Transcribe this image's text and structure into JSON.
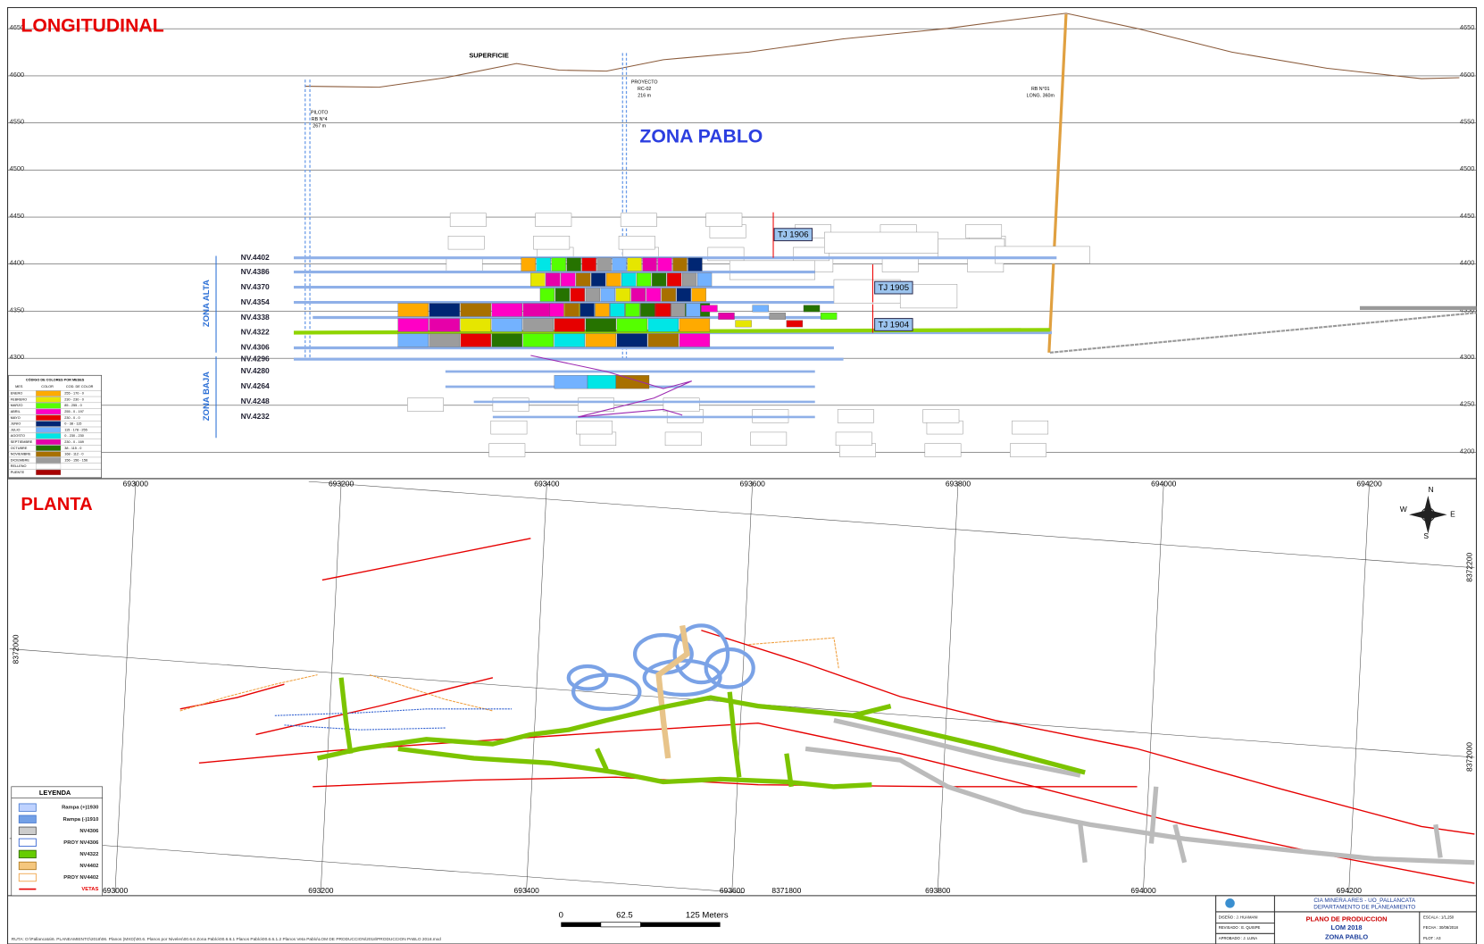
{
  "longitudinal": {
    "title": "LONGITUDINAL",
    "elevations": [
      4650,
      4600,
      4550,
      4500,
      4450,
      4400,
      4350,
      4300,
      4250,
      4200
    ],
    "surface_label": "SUPERFICIE",
    "zone_title": "ZONA PABLO",
    "raises": [
      {
        "lines": [
          "PILOTO",
          "RB N°4",
          "267 m"
        ]
      },
      {
        "lines": [
          "PROYECTO",
          "RC-02",
          "216 m"
        ]
      },
      {
        "lines": [
          "RB N°01",
          "LONG. 360m"
        ]
      }
    ],
    "tajos": [
      "TJ 1906",
      "TJ 1905",
      "TJ 1904"
    ],
    "zones": [
      "ZONA ALTA",
      "ZONA BAJA"
    ],
    "levels": [
      "NV.4402",
      "NV.4386",
      "NV.4370",
      "NV.4354",
      "NV.4338",
      "NV.4322",
      "NV.4306",
      "NV.4296",
      "NV.4280",
      "NV.4264",
      "NV.4248",
      "NV.4232"
    ]
  },
  "color_code": {
    "title": "CÓDIGO DE COLORES POR MESES",
    "headers": [
      "MES",
      "COLOR",
      "COD. DE COLOR"
    ],
    "rows": [
      {
        "month": "ENERO",
        "color": "#ffaa00",
        "code": "255 - 170 - 0"
      },
      {
        "month": "FEBRERO",
        "color": "#e6e600",
        "code": "230 - 230 - 0"
      },
      {
        "month": "MARZO",
        "color": "#55ff00",
        "code": "85 - 255 - 0"
      },
      {
        "month": "ABRIL",
        "color": "#ff00c5",
        "code": "255 - 0 - 197"
      },
      {
        "month": "MAYO",
        "color": "#e60000",
        "code": "230 - 0 - 0"
      },
      {
        "month": "JUNIO",
        "color": "#002673",
        "code": "0 - 38 - 115"
      },
      {
        "month": "JULIO",
        "color": "#73b2ff",
        "code": "115 - 178 - 255"
      },
      {
        "month": "AGOSTO",
        "color": "#00e6e6",
        "code": "0 - 230 - 230"
      },
      {
        "month": "SEPTIEMBRE",
        "color": "#e600a9",
        "code": "230 - 0 - 169"
      },
      {
        "month": "OCTUBRE",
        "color": "#267300",
        "code": "38 - 115 - 0"
      },
      {
        "month": "NOVIEMBRE",
        "color": "#a87000",
        "code": "168 - 112 - 0"
      },
      {
        "month": "DICIEMBRE",
        "color": "#9c9c9c",
        "code": "156 - 156 - 156"
      },
      {
        "month": "RELLENO",
        "color": "#ffffff",
        "code": ""
      },
      {
        "month": "PUENTE",
        "color": "#a80000",
        "code": ""
      }
    ]
  },
  "planta": {
    "title": "PLANTA",
    "eastings": [
      693000,
      693200,
      693400,
      693600,
      693800,
      694000,
      694200
    ],
    "northings": [
      8372200,
      8372000,
      8371800
    ],
    "compass": [
      "N",
      "E",
      "S",
      "W"
    ],
    "legend_title": "LEYENDA",
    "legend": [
      {
        "label": "Rampa (+)1930",
        "fill": "#bed2ff",
        "stroke": "#4a7bd0"
      },
      {
        "label": "Rampa (-)1910",
        "fill": "#73a0e6",
        "stroke": "#4a7bd0"
      },
      {
        "label": "NV4306",
        "fill": "#cccccc",
        "stroke": "#555555"
      },
      {
        "label": "PROY NV4306",
        "fill": "#ffffff",
        "stroke": "#2f5fd0"
      },
      {
        "label": "NV4322",
        "fill": "#66cc00",
        "stroke": "#336600"
      },
      {
        "label": "NV4402",
        "fill": "#f5c77e",
        "stroke": "#b07a20"
      },
      {
        "label": "PROY NV4402",
        "fill": "#ffffff",
        "stroke": "#f0a040"
      },
      {
        "label": "VETAS",
        "fill": "#ffffff",
        "stroke": "#e60000"
      }
    ]
  },
  "scale_bar": {
    "labels": [
      "0",
      "62.5",
      "125 Meters"
    ]
  },
  "title_block": {
    "company": "CIA MINERA ARES - UO_PALLANCATA",
    "department": "DEPARTAMENTO DE PLANEAMIENTO",
    "plan": "PLANO DE PRODUCCION",
    "subtitle": "LOM 2018",
    "zone": "ZONA PABLO",
    "designed": "DISEÑO : J. HUAMANI",
    "reviewed": "REVISADO : E. QUISPE",
    "approved": "APROBADO : J. LUNA",
    "scale": "ESCALA : 1/1,250",
    "date": "FECHA : 30/08/2018",
    "plot": "PLOT : A3"
  },
  "path": "RUTA: O:\\Pallancata\\6. PLANEAMIENTO\\2018\\06. Planos (MXD)\\00.6. Planos por Niveles\\00.6.6 Zona Pablo\\00.6.6.1 Planos Pablo\\00.6.6.1.2 Planos Veta Pablo\\LOM DE PRODUCCION\\2018\\PRODUCCION PABLO 2018.mxd"
}
